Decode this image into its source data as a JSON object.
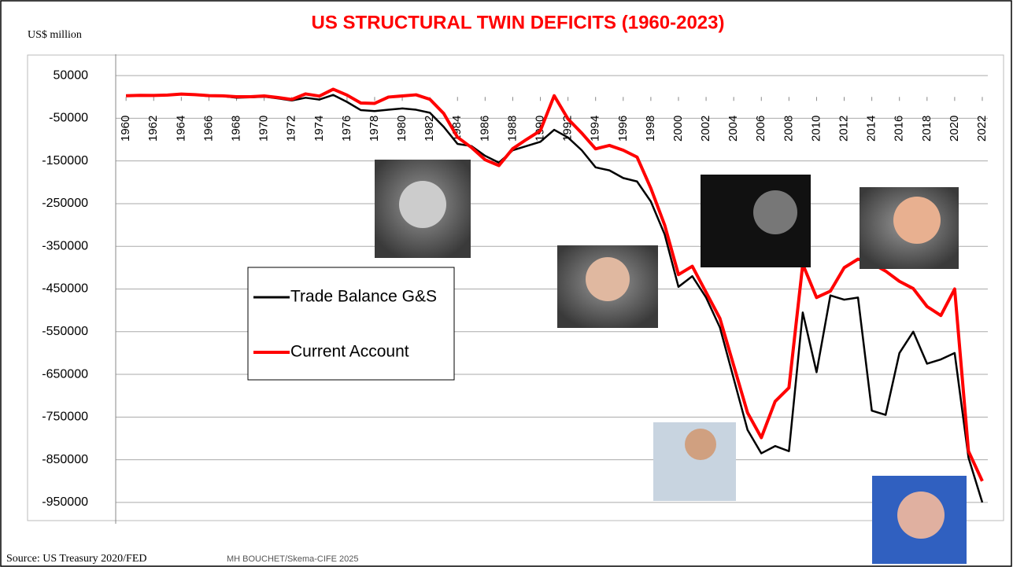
{
  "chart_data": {
    "type": "line",
    "title": "US STRUCTURAL TWIN DEFICITS (1960-2023)",
    "y_label": "US$ million",
    "source": "Source: US Treasury 2020/FED",
    "credit": "MH BOUCHET/Skema-CIFE 2025",
    "x": [
      1960,
      1961,
      1962,
      1963,
      1964,
      1965,
      1966,
      1967,
      1968,
      1969,
      1970,
      1971,
      1972,
      1973,
      1974,
      1975,
      1976,
      1977,
      1978,
      1979,
      1980,
      1981,
      1982,
      1983,
      1984,
      1985,
      1986,
      1987,
      1988,
      1989,
      1990,
      1991,
      1992,
      1993,
      1994,
      1995,
      1996,
      1997,
      1998,
      1999,
      2000,
      2001,
      2002,
      2003,
      2004,
      2005,
      2006,
      2007,
      2008,
      2009,
      2010,
      2011,
      2012,
      2013,
      2014,
      2015,
      2016,
      2017,
      2018,
      2019,
      2020,
      2021,
      2022
    ],
    "xlim": [
      1959.25,
      2022.4
    ],
    "xticks": [
      1960,
      1962,
      1964,
      1966,
      1968,
      1970,
      1972,
      1974,
      1976,
      1978,
      1980,
      1982,
      1984,
      1986,
      1988,
      1990,
      1992,
      1994,
      1996,
      1998,
      2000,
      2002,
      2004,
      2006,
      2008,
      2010,
      2012,
      2014,
      2016,
      2018,
      2020,
      2022
    ],
    "ylim": [
      -1000000,
      100000
    ],
    "yticks": [
      50000,
      -50000,
      -150000,
      -250000,
      -350000,
      -450000,
      -550000,
      -650000,
      -750000,
      -850000,
      -950000
    ],
    "grid": true,
    "legend": "center-left",
    "series": [
      {
        "name": "Trade Balance G&S",
        "color": "#000000",
        "values": [
          3500,
          4500,
          3400,
          4200,
          6800,
          4700,
          1900,
          1800,
          -1700,
          -800,
          600,
          -3500,
          -8300,
          -1900,
          -6100,
          4700,
          -11700,
          -30900,
          -33100,
          -30000,
          -27000,
          -30000,
          -37000,
          -70000,
          -110000,
          -115000,
          -138000,
          -154000,
          -125000,
          -115000,
          -105000,
          -77000,
          -95000,
          -125000,
          -165000,
          -172000,
          -190000,
          -198000,
          -245000,
          -322000,
          -445000,
          -420000,
          -470000,
          -540000,
          -660000,
          -780000,
          -835000,
          -818000,
          -830000,
          -505000,
          -645000,
          -465000,
          -475000,
          -470000,
          -735000,
          -745000,
          -600000,
          -550000,
          -625000,
          -615000,
          -600000,
          -845000,
          -950000
        ]
      },
      {
        "name": "Current Account",
        "color": "#ff0000",
        "values": [
          2800,
          3800,
          3400,
          4400,
          6800,
          5400,
          3000,
          2600,
          600,
          400,
          2300,
          -1400,
          -5800,
          7100,
          2000,
          18100,
          4300,
          -14300,
          -15100,
          -300,
          2300,
          5000,
          -5500,
          -38700,
          -94300,
          -118200,
          -147200,
          -160700,
          -121200,
          -99500,
          -79000,
          2900,
          -51600,
          -84800,
          -121600,
          -113600,
          -124800,
          -140900,
          -214100,
          -300100,
          -416300,
          -396700,
          -457800,
          -518700,
          -629300,
          -739800,
          -798200,
          -713400,
          -681300,
          -392000,
          -470000,
          -455000,
          -400000,
          -380000,
          -390000,
          -408000,
          -432000,
          -449000,
          -491000,
          -512000,
          -450000,
          -830000,
          -900000
        ]
      }
    ]
  }
}
